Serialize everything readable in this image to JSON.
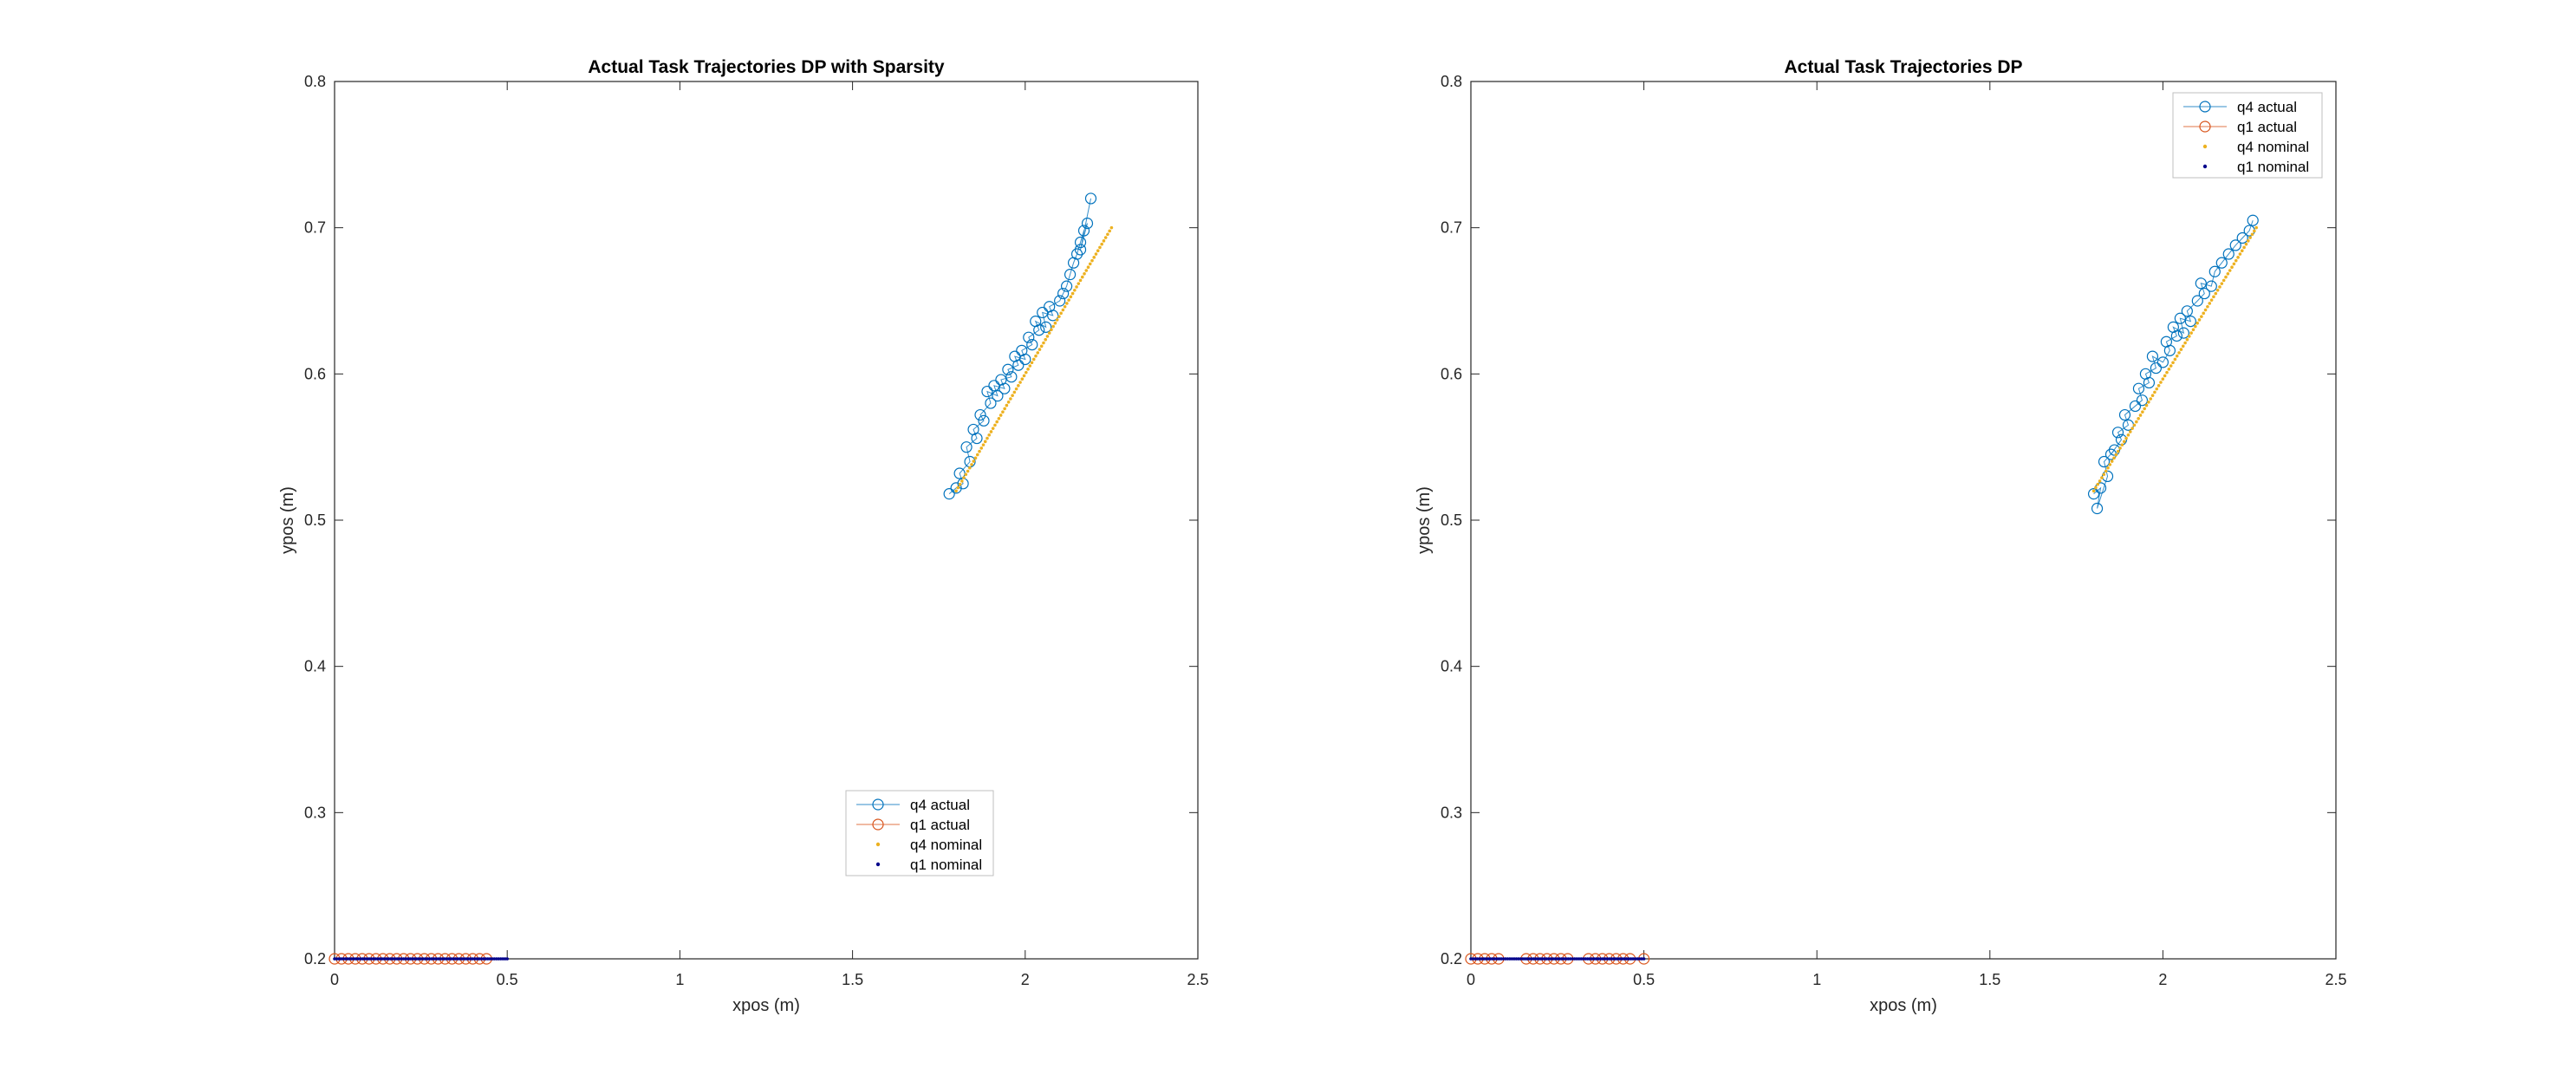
{
  "colors": {
    "q4_actual": "#0072BD",
    "q1_actual": "#D95319",
    "q4_nominal": "#EDB120",
    "q1_nominal": "#00008B",
    "axes": "#262626"
  },
  "chart_data": [
    {
      "type": "line",
      "title": "Actual Task Trajectories DP with Sparsity",
      "xlabel": "xpos (m)",
      "ylabel": "ypos (m)",
      "xlim": [
        0,
        2.5
      ],
      "ylim": [
        0.2,
        0.8
      ],
      "xticks": [
        "0",
        "0.5",
        "1",
        "1.5",
        "2",
        "2.5"
      ],
      "yticks": [
        "0.2",
        "0.3",
        "0.4",
        "0.5",
        "0.6",
        "0.7",
        "0.8"
      ],
      "legend_position": "bottom-center",
      "series": [
        {
          "name": "q4 actual",
          "marker": "circle",
          "color": "#0072BD",
          "x": [
            1.78,
            1.8,
            1.82,
            1.81,
            1.84,
            1.83,
            1.86,
            1.85,
            1.88,
            1.87,
            1.9,
            1.89,
            1.92,
            1.91,
            1.94,
            1.93,
            1.96,
            1.95,
            1.98,
            1.97,
            2.0,
            1.99,
            2.02,
            2.01,
            2.04,
            2.03,
            2.06,
            2.05,
            2.08,
            2.07,
            2.1,
            2.11,
            2.12,
            2.13,
            2.14,
            2.15,
            2.16,
            2.17,
            2.18,
            2.16,
            2.19
          ],
          "y": [
            0.518,
            0.522,
            0.525,
            0.532,
            0.54,
            0.55,
            0.556,
            0.562,
            0.568,
            0.572,
            0.58,
            0.588,
            0.585,
            0.592,
            0.59,
            0.596,
            0.598,
            0.603,
            0.606,
            0.612,
            0.61,
            0.616,
            0.62,
            0.625,
            0.63,
            0.636,
            0.632,
            0.642,
            0.64,
            0.646,
            0.65,
            0.655,
            0.66,
            0.668,
            0.676,
            0.682,
            0.69,
            0.698,
            0.703,
            0.685,
            0.72
          ]
        },
        {
          "name": "q1 actual",
          "marker": "circle",
          "color": "#D95319",
          "x": [
            0.0,
            0.02,
            0.04,
            0.06,
            0.08,
            0.1,
            0.12,
            0.14,
            0.16,
            0.18,
            0.2,
            0.22,
            0.24,
            0.26,
            0.28,
            0.3,
            0.32,
            0.34,
            0.36,
            0.38,
            0.4,
            0.42,
            0.44
          ],
          "y": [
            0.2,
            0.2,
            0.2,
            0.2,
            0.2,
            0.2,
            0.2,
            0.2,
            0.2,
            0.2,
            0.2,
            0.2,
            0.2,
            0.2,
            0.2,
            0.2,
            0.2,
            0.2,
            0.2,
            0.2,
            0.2,
            0.2,
            0.2
          ]
        },
        {
          "name": "q4 nominal",
          "marker": "dot",
          "color": "#EDB120",
          "x": [
            1.8,
            2.25
          ],
          "y": [
            0.52,
            0.7
          ]
        },
        {
          "name": "q1 nominal",
          "marker": "dot",
          "color": "#00008B",
          "x": [
            0.0,
            0.5
          ],
          "y": [
            0.2,
            0.2
          ]
        }
      ]
    },
    {
      "type": "line",
      "title": "Actual Task Trajectories DP",
      "xlabel": "xpos (m)",
      "ylabel": "ypos (m)",
      "xlim": [
        0,
        2.5
      ],
      "ylim": [
        0.2,
        0.8
      ],
      "xticks": [
        "0",
        "0.5",
        "1",
        "1.5",
        "2",
        "2.5"
      ],
      "yticks": [
        "0.2",
        "0.3",
        "0.4",
        "0.5",
        "0.6",
        "0.7",
        "0.8"
      ],
      "legend_position": "top-right",
      "series": [
        {
          "name": "q4 actual",
          "marker": "circle",
          "color": "#0072BD",
          "x": [
            1.8,
            1.82,
            1.81,
            1.84,
            1.83,
            1.86,
            1.85,
            1.88,
            1.87,
            1.9,
            1.89,
            1.92,
            1.94,
            1.93,
            1.96,
            1.95,
            1.98,
            1.97,
            2.0,
            2.02,
            2.01,
            2.04,
            2.03,
            2.06,
            2.05,
            2.08,
            2.07,
            2.1,
            2.12,
            2.11,
            2.14,
            2.15,
            2.17,
            2.19,
            2.21,
            2.23,
            2.25,
            2.26
          ],
          "y": [
            0.518,
            0.522,
            0.508,
            0.53,
            0.54,
            0.548,
            0.545,
            0.555,
            0.56,
            0.565,
            0.572,
            0.578,
            0.582,
            0.59,
            0.594,
            0.6,
            0.604,
            0.612,
            0.608,
            0.616,
            0.622,
            0.626,
            0.632,
            0.628,
            0.638,
            0.636,
            0.643,
            0.65,
            0.655,
            0.662,
            0.66,
            0.67,
            0.676,
            0.682,
            0.688,
            0.693,
            0.698,
            0.705
          ]
        },
        {
          "name": "q1 actual",
          "marker": "circle",
          "color": "#D95319",
          "x": [
            0.0,
            0.02,
            0.04,
            0.06,
            0.08,
            0.16,
            0.18,
            0.2,
            0.22,
            0.24,
            0.26,
            0.28,
            0.34,
            0.36,
            0.38,
            0.4,
            0.42,
            0.44,
            0.46,
            0.5
          ],
          "y": [
            0.2,
            0.2,
            0.2,
            0.2,
            0.2,
            0.2,
            0.2,
            0.2,
            0.2,
            0.2,
            0.2,
            0.2,
            0.2,
            0.2,
            0.2,
            0.2,
            0.2,
            0.2,
            0.2,
            0.2
          ]
        },
        {
          "name": "q4 nominal",
          "marker": "dot",
          "color": "#EDB120",
          "x": [
            1.8,
            2.27
          ],
          "y": [
            0.52,
            0.7
          ]
        },
        {
          "name": "q1 nominal",
          "marker": "dot",
          "color": "#00008B",
          "x": [
            0.0,
            0.5
          ],
          "y": [
            0.2,
            0.2
          ]
        }
      ]
    }
  ]
}
